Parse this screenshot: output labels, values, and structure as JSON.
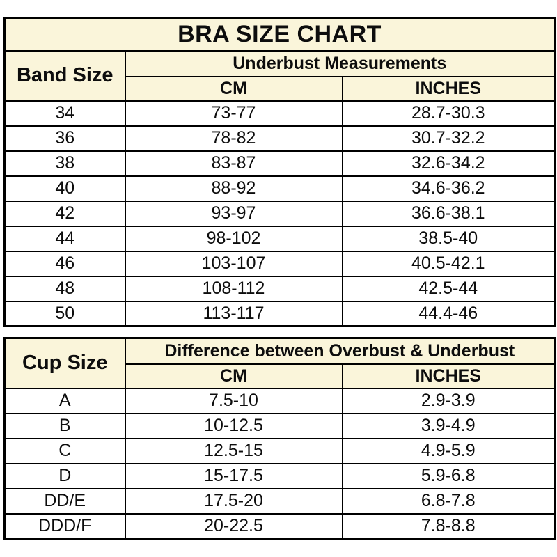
{
  "title": "BRA SIZE CHART",
  "colors": {
    "header_bg": "#FAF5DA",
    "row_bg": "#FFFFFF",
    "border": "#000000",
    "text": "#0D0D0D"
  },
  "chart_data": [
    {
      "type": "table",
      "title": "BRA SIZE CHART",
      "corner_header": "Band Size",
      "group_header": "Underbust Measurements",
      "columns": [
        "CM",
        "INCHES"
      ],
      "rows": [
        [
          "34",
          "73-77",
          "28.7-30.3"
        ],
        [
          "36",
          "78-82",
          "30.7-32.2"
        ],
        [
          "38",
          "83-87",
          "32.6-34.2"
        ],
        [
          "40",
          "88-92",
          "34.6-36.2"
        ],
        [
          "42",
          "93-97",
          "36.6-38.1"
        ],
        [
          "44",
          "98-102",
          "38.5-40"
        ],
        [
          "46",
          "103-107",
          "40.5-42.1"
        ],
        [
          "48",
          "108-112",
          "42.5-44"
        ],
        [
          "50",
          "113-117",
          "44.4-46"
        ]
      ]
    },
    {
      "type": "table",
      "corner_header": "Cup Size",
      "group_header": "Difference between Overbust & Underbust",
      "columns": [
        "CM",
        "INCHES"
      ],
      "rows": [
        [
          "A",
          "7.5-10",
          "2.9-3.9"
        ],
        [
          "B",
          "10-12.5",
          "3.9-4.9"
        ],
        [
          "C",
          "12.5-15",
          "4.9-5.9"
        ],
        [
          "D",
          "15-17.5",
          "5.9-6.8"
        ],
        [
          "DD/E",
          "17.5-20",
          "6.8-7.8"
        ],
        [
          "DDD/F",
          "20-22.5",
          "7.8-8.8"
        ]
      ]
    }
  ]
}
